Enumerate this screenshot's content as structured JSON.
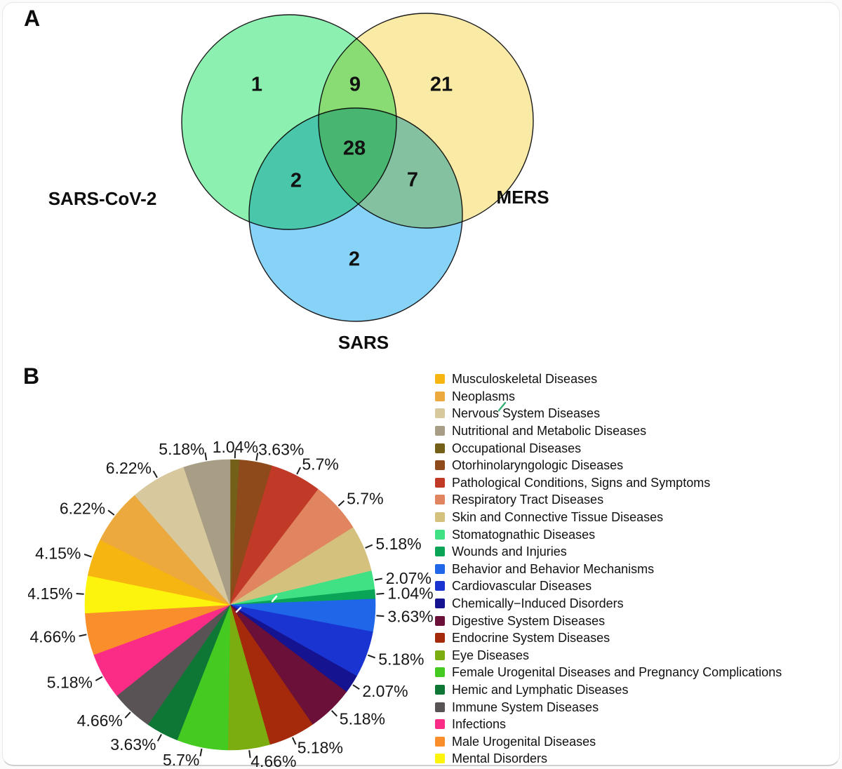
{
  "panel_a": {
    "label": "A",
    "venn": {
      "sets": [
        {
          "name": "SARS-CoV-2",
          "color": "#8BF0B0"
        },
        {
          "name": "MERS",
          "color": "#F9EAA6"
        },
        {
          "name": "SARS",
          "color": "#87D3F8"
        }
      ],
      "regions": [
        {
          "region": "SARS-CoV-2 only",
          "value": "1"
        },
        {
          "region": "SARS-CoV-2 and MERS",
          "value": "9"
        },
        {
          "region": "MERS only",
          "value": "21"
        },
        {
          "region": "SARS-CoV-2, MERS and SARS",
          "value": "28"
        },
        {
          "region": "SARS-CoV-2 and SARS",
          "value": "2"
        },
        {
          "region": "MERS and SARS",
          "value": "7"
        },
        {
          "region": "SARS only",
          "value": "2"
        }
      ]
    }
  },
  "panel_b": {
    "label": "B"
  },
  "chart_data": [
    {
      "type": "venn",
      "sets": [
        "SARS-CoV-2",
        "MERS",
        "SARS"
      ],
      "region_counts": {
        "SARS-CoV-2_only": 1,
        "SARS-CoV-2_and_MERS": 9,
        "MERS_only": 21,
        "all_three": 28,
        "SARS-CoV-2_and_SARS": 2,
        "MERS_and_SARS": 7,
        "SARS_only": 2
      }
    },
    {
      "type": "pie",
      "unit": "percent",
      "start_angle_deg": 0,
      "direction": "clockwise",
      "draw_start_index": 4,
      "legend_position": "right",
      "slices": [
        {
          "label": "Musculoskeletal Diseases",
          "value": 4.15,
          "display": "4.15%",
          "color": "#F7B511"
        },
        {
          "label": "Neoplasms",
          "value": 6.22,
          "display": "6.22%",
          "color": "#EBA93E"
        },
        {
          "label": "Nervous System Diseases",
          "value": 6.22,
          "display": "6.22%",
          "color": "#D8C89E"
        },
        {
          "label": "Nutritional and Metabolic Diseases",
          "value": 5.18,
          "display": "5.18%",
          "color": "#A89E86"
        },
        {
          "label": "Occupational Diseases",
          "value": 1.04,
          "display": "1.04%",
          "color": "#75601A"
        },
        {
          "label": "Otorhinolaryngologic Diseases",
          "value": 3.63,
          "display": "3.63%",
          "color": "#8E4A1B"
        },
        {
          "label": "Pathological Conditions, Signs and Symptoms",
          "value": 5.7,
          "display": "5.7%",
          "color": "#C03A27"
        },
        {
          "label": "Respiratory Tract Diseases",
          "value": 5.7,
          "display": "5.7%",
          "color": "#E08560"
        },
        {
          "label": "Skin and Connective Tissue Diseases",
          "value": 5.18,
          "display": "5.18%",
          "color": "#D5C17E"
        },
        {
          "label": "Stomatognathic Diseases",
          "value": 2.07,
          "display": "2.07%",
          "color": "#40E184"
        },
        {
          "label": "Wounds and Injuries",
          "value": 1.04,
          "display": "1.04%",
          "color": "#0AA457"
        },
        {
          "label": "Behavior and Behavior Mechanisms",
          "value": 3.63,
          "display": "3.63%",
          "color": "#1F66E8"
        },
        {
          "label": "Cardiovascular Diseases",
          "value": 5.18,
          "display": "5.18%",
          "color": "#1A34D1"
        },
        {
          "label": "Chemically−Induced Disorders",
          "value": 2.07,
          "display": "2.07%",
          "color": "#15138F"
        },
        {
          "label": "Digestive System Diseases",
          "value": 5.18,
          "display": "5.18%",
          "color": "#6B1038"
        },
        {
          "label": "Endocrine System Diseases",
          "value": 5.18,
          "display": "5.18%",
          "color": "#A52A0C"
        },
        {
          "label": "Eye Diseases",
          "value": 4.66,
          "display": "4.66%",
          "color": "#7BAC10"
        },
        {
          "label": "Female Urogenital Diseases and Pregnancy Complications",
          "value": 5.7,
          "display": "5.7%",
          "color": "#44CA21"
        },
        {
          "label": "Hemic and Lymphatic Diseases",
          "value": 3.63,
          "display": "3.63%",
          "color": "#0F7736"
        },
        {
          "label": "Immune System Diseases",
          "value": 4.66,
          "display": "4.66%",
          "color": "#595355"
        },
        {
          "label": "Infections",
          "value": 5.18,
          "display": "5.18%",
          "color": "#FB2C86"
        },
        {
          "label": "Male Urogenital Diseases",
          "value": 4.66,
          "display": "4.66%",
          "color": "#F98E2B"
        },
        {
          "label": "Mental Disorders",
          "value": 4.15,
          "display": "4.15%",
          "color": "#FDF40D"
        }
      ]
    }
  ]
}
